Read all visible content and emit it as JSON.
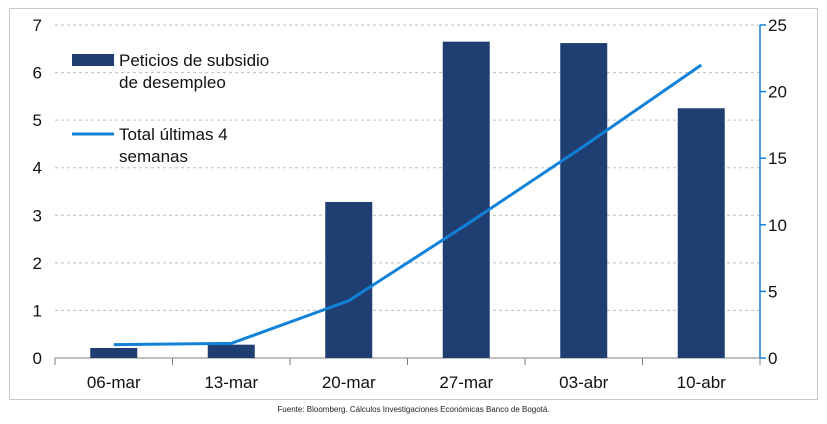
{
  "chart_data": {
    "type": "bar",
    "title": "",
    "categories": [
      "06-mar",
      "13-mar",
      "20-mar",
      "27-mar",
      "03-abr",
      "10-abr"
    ],
    "series": [
      {
        "name": "Peticios de subsidio de desempleo",
        "type": "bar",
        "axis": "left",
        "values": [
          0.21,
          0.28,
          3.28,
          6.65,
          6.62,
          5.25
        ],
        "color": "#1f3f73"
      },
      {
        "name": "Total últimas 4 semanas",
        "type": "line",
        "axis": "right",
        "values": [
          1.0,
          1.1,
          4.3,
          10.0,
          15.9,
          22.0
        ],
        "color": "#1282d8"
      }
    ],
    "y_left": {
      "min": 0,
      "max": 7,
      "ticks": [
        "0",
        "1",
        "2",
        "3",
        "4",
        "5",
        "6",
        "7"
      ]
    },
    "y_right": {
      "min": 0,
      "max": 25,
      "ticks": [
        "0",
        "5",
        "10",
        "15",
        "20",
        "25"
      ],
      "color": "#1282d8"
    },
    "grid": true,
    "legend": {
      "placement": "top-left",
      "entries": [
        {
          "lines": [
            "Peticios de subsidio",
            "de desempleo"
          ],
          "marker": "bar"
        },
        {
          "lines": [
            "Total últimas 4",
            "semanas"
          ],
          "marker": "line"
        }
      ]
    },
    "source": "Fuente: Bloomberg. Cálculos Investigaciones Económicas Banco de Bogotá."
  }
}
